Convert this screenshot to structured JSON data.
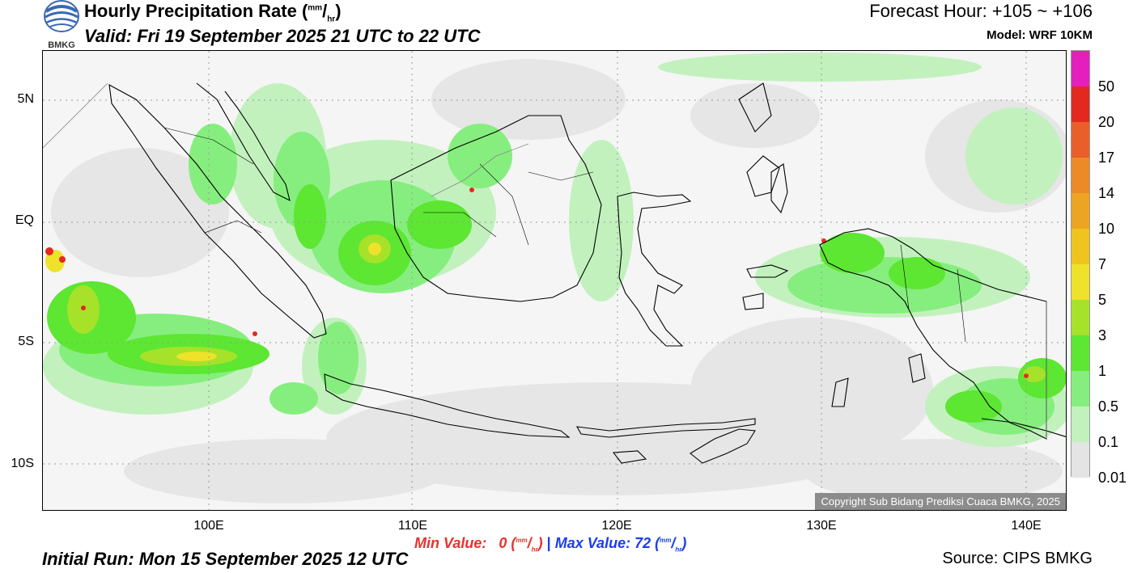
{
  "header": {
    "logo_text": "BMKG",
    "title": "Hourly Precipitation Rate (",
    "title_unit_num": "mm",
    "title_unit_slash": "/",
    "title_unit_den": "hr",
    "title_close": ")",
    "valid_text": "Valid: Fri 19 September 2025 21 UTC to 22 UTC",
    "forecast_hour": "Forecast Hour: +105 ~ +106",
    "model": "Model: WRF 10KM"
  },
  "map": {
    "y_labels": [
      "5N",
      "EQ",
      "5S",
      "10S"
    ],
    "x_labels": [
      "100E",
      "110E",
      "120E",
      "130E",
      "140E"
    ],
    "copyright": "Copyright Sub Bidang Prediksi Cuaca BMKG, 2025"
  },
  "legend": {
    "labels": [
      "50",
      "20",
      "17",
      "14",
      "10",
      "7",
      "5",
      "3",
      "1",
      "0.5",
      "0.1",
      "0.01"
    ],
    "colors": [
      "#e51fbe",
      "#e3291f",
      "#e85f2a",
      "#ec8a28",
      "#eca423",
      "#f0c41e",
      "#eee22a",
      "#a6e22a",
      "#5de632",
      "#86ee7e",
      "#c2f1be",
      "#e4e4e4"
    ]
  },
  "footer": {
    "min_label": "Min Value:   0 (",
    "min_value": "0",
    "max_label": "Max Value:  72 (",
    "unit_num": "mm",
    "unit_den": "hr",
    "separator": "|",
    "initial_run": "Initial Run: Mon 15 September 2025 12 UTC",
    "source": "Source: CIPS BMKG"
  }
}
